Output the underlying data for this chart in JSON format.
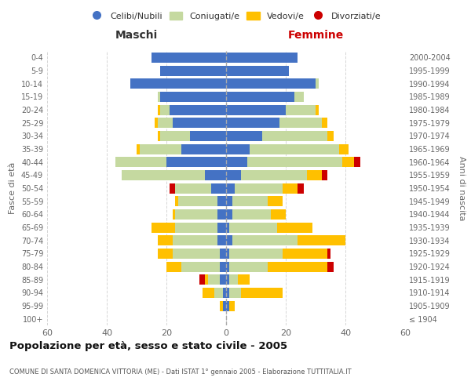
{
  "age_groups": [
    "100+",
    "95-99",
    "90-94",
    "85-89",
    "80-84",
    "75-79",
    "70-74",
    "65-69",
    "60-64",
    "55-59",
    "50-54",
    "45-49",
    "40-44",
    "35-39",
    "30-34",
    "25-29",
    "20-24",
    "15-19",
    "10-14",
    "5-9",
    "0-4"
  ],
  "birth_years": [
    "≤ 1904",
    "1905-1909",
    "1910-1914",
    "1915-1919",
    "1920-1924",
    "1925-1929",
    "1930-1934",
    "1935-1939",
    "1940-1944",
    "1945-1949",
    "1950-1954",
    "1955-1959",
    "1960-1964",
    "1965-1969",
    "1970-1974",
    "1975-1979",
    "1980-1984",
    "1985-1989",
    "1990-1994",
    "1995-1999",
    "2000-2004"
  ],
  "colors": {
    "celibi": "#4472c4",
    "coniugati": "#c5d9a0",
    "vedovi": "#ffc000",
    "divorziati": "#cc0000"
  },
  "males": {
    "celibi": [
      0,
      1,
      1,
      2,
      2,
      2,
      3,
      3,
      3,
      3,
      5,
      7,
      20,
      15,
      12,
      18,
      19,
      22,
      32,
      22,
      25
    ],
    "coniugati": [
      0,
      0,
      3,
      4,
      13,
      16,
      15,
      14,
      14,
      13,
      12,
      28,
      17,
      14,
      10,
      5,
      3,
      1,
      0,
      0,
      0
    ],
    "vedovi": [
      0,
      1,
      4,
      1,
      5,
      5,
      5,
      8,
      1,
      1,
      0,
      0,
      0,
      1,
      1,
      1,
      1,
      0,
      0,
      0,
      0
    ],
    "divorziati": [
      0,
      0,
      0,
      2,
      0,
      0,
      0,
      0,
      0,
      0,
      2,
      0,
      0,
      0,
      0,
      0,
      0,
      0,
      0,
      0,
      0
    ]
  },
  "females": {
    "celibi": [
      0,
      1,
      1,
      1,
      1,
      1,
      2,
      1,
      2,
      2,
      3,
      5,
      7,
      8,
      12,
      18,
      20,
      23,
      30,
      21,
      24
    ],
    "coniugati": [
      0,
      0,
      4,
      3,
      13,
      18,
      22,
      16,
      13,
      12,
      16,
      22,
      32,
      30,
      22,
      14,
      10,
      3,
      1,
      0,
      0
    ],
    "vedovi": [
      0,
      2,
      14,
      4,
      20,
      15,
      16,
      12,
      5,
      5,
      5,
      5,
      4,
      3,
      2,
      2,
      1,
      0,
      0,
      0,
      0
    ],
    "divorziati": [
      0,
      0,
      0,
      0,
      2,
      1,
      0,
      0,
      0,
      0,
      2,
      2,
      2,
      0,
      0,
      0,
      0,
      0,
      0,
      0,
      0
    ]
  },
  "xlim": 60,
  "title": "Popolazione per età, sesso e stato civile - 2005",
  "subtitle": "COMUNE DI SANTA DOMENICA VITTORIA (ME) - Dati ISTAT 1° gennaio 2005 - Elaborazione TUTTITALIA.IT",
  "xlabel_left": "Maschi",
  "xlabel_right": "Femmine",
  "ylabel_left": "Fasce di età",
  "ylabel_right": "Anni di nascita",
  "legend_labels": [
    "Celibi/Nubili",
    "Coniugati/e",
    "Vedovi/e",
    "Divorziati/e"
  ],
  "bg_color": "#ffffff",
  "grid_color": "#cccccc"
}
